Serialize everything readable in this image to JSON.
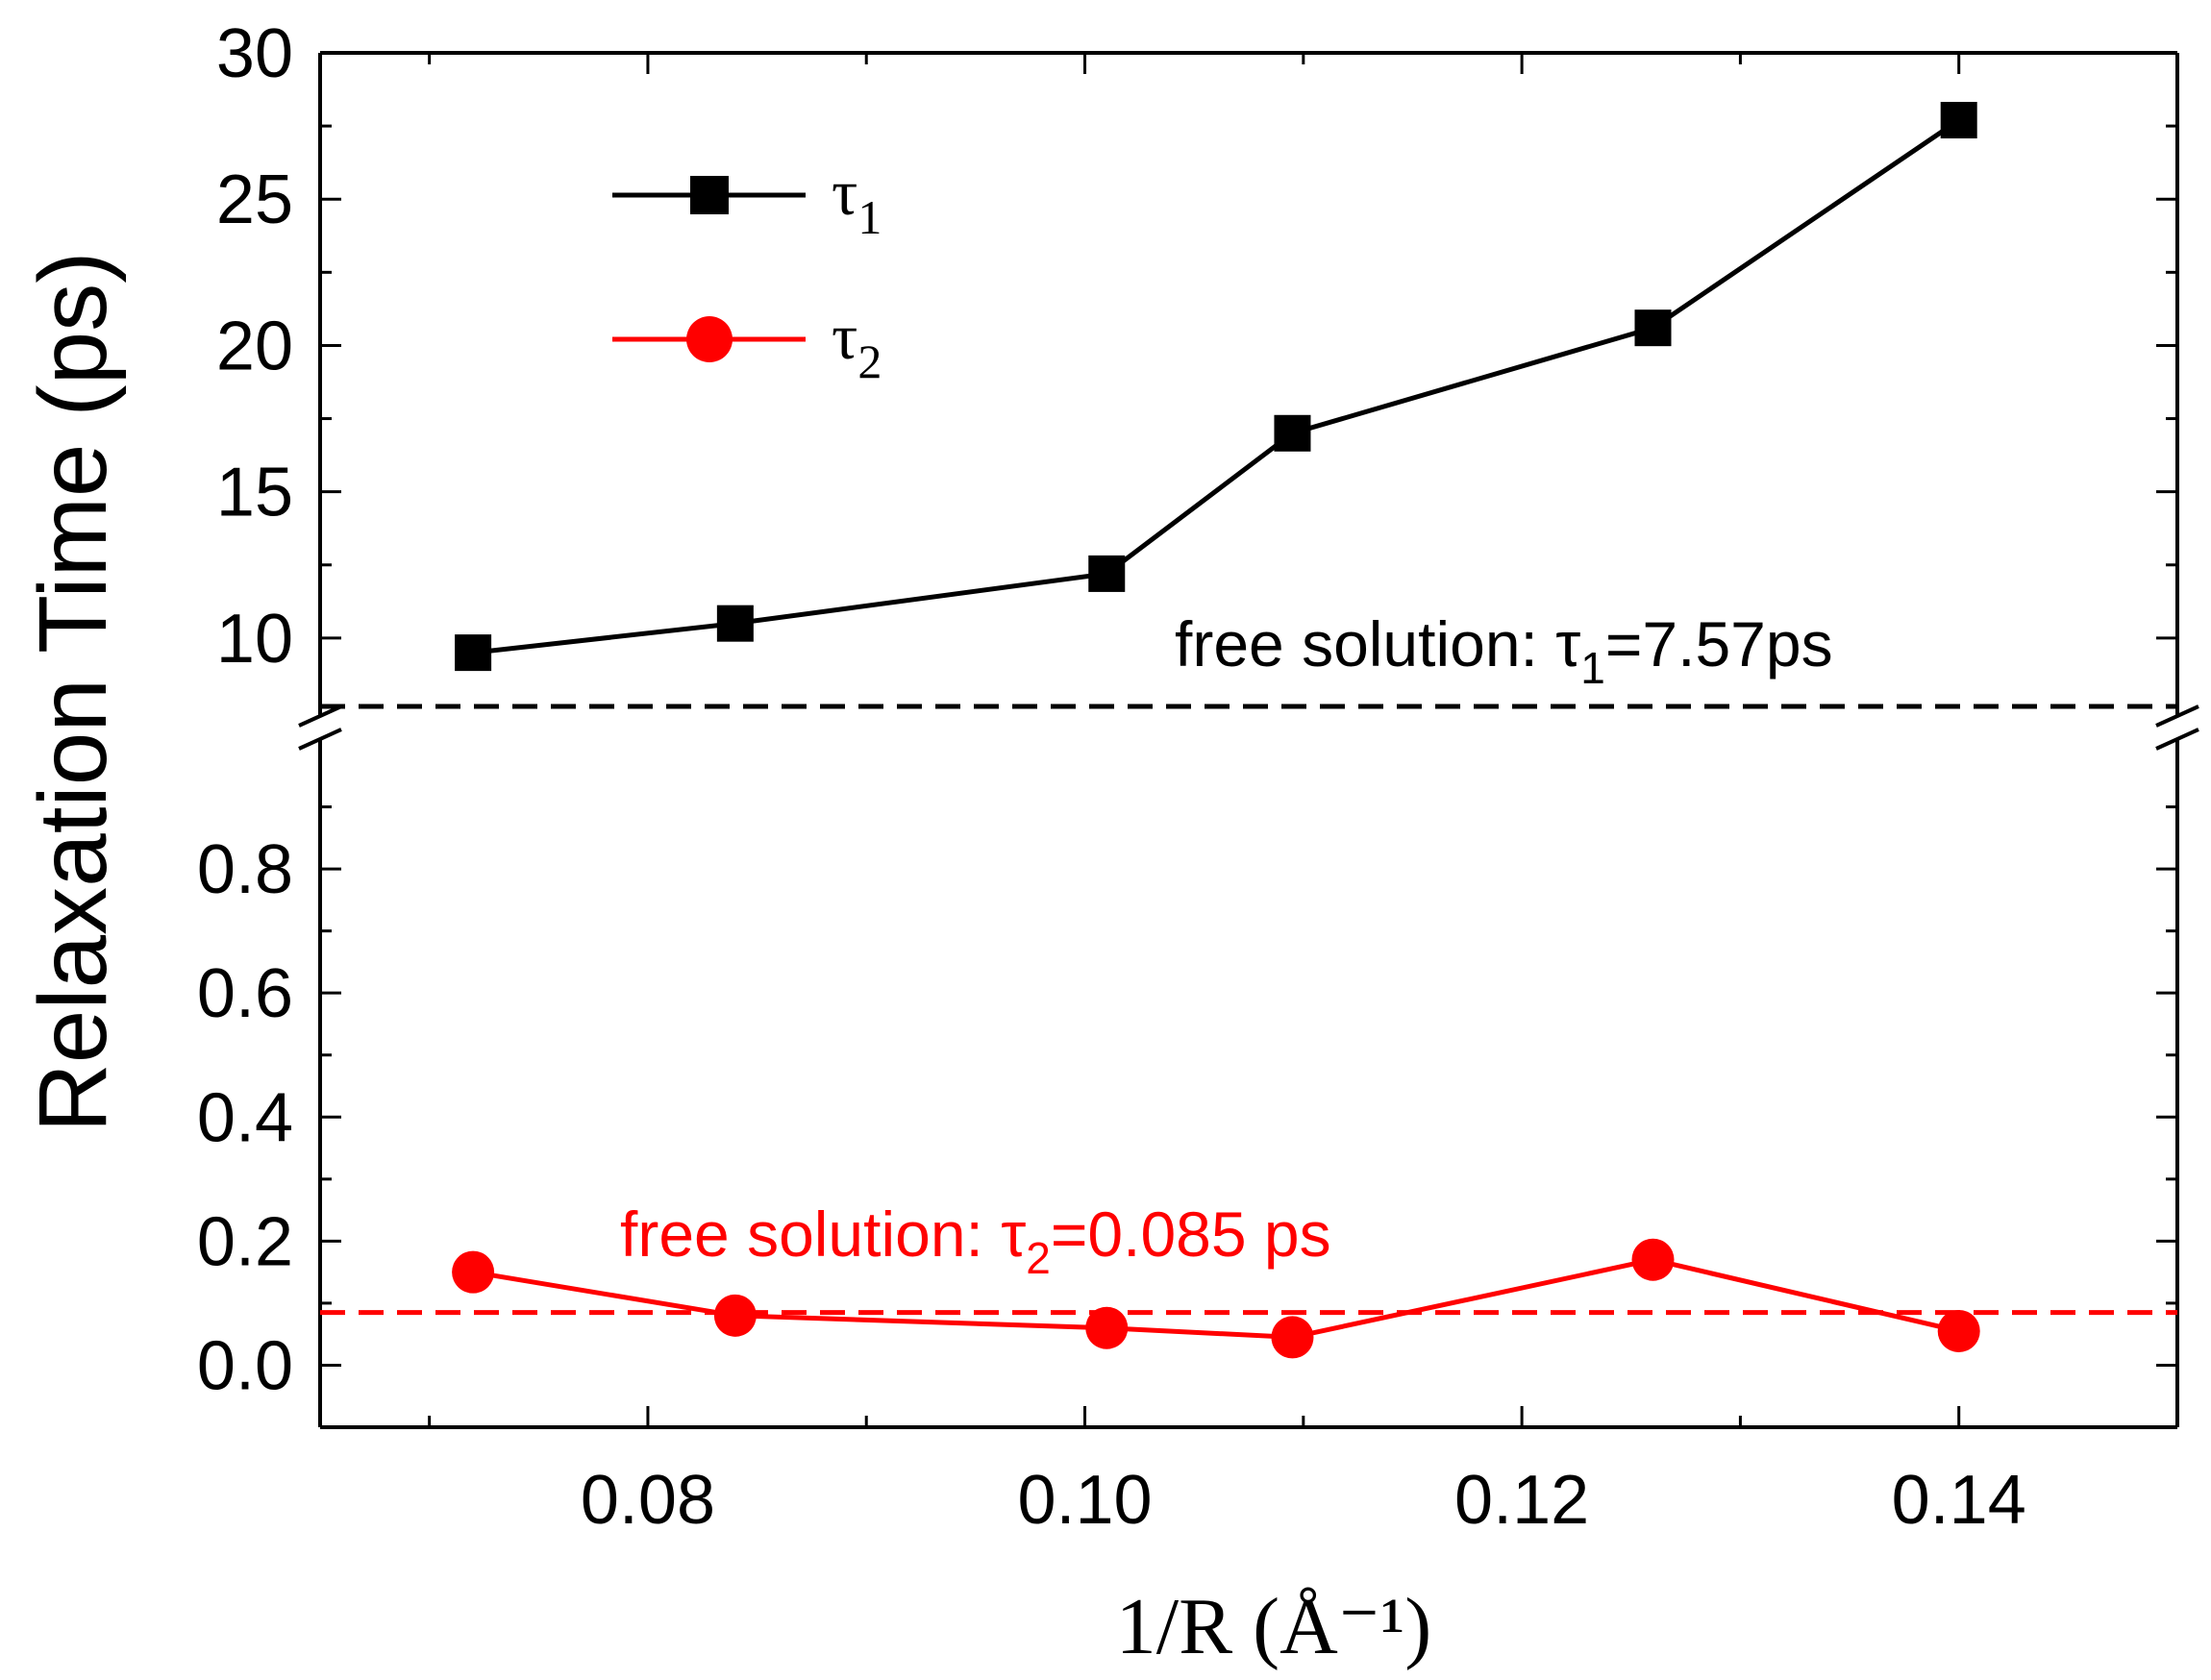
{
  "chart_data": {
    "type": "line",
    "xlabel": "1/R (Å⁻¹)",
    "ylabel": "Relaxation Time (ps)",
    "xlim": [
      0.065,
      0.15
    ],
    "x_ticks": [
      0.08,
      0.1,
      0.12,
      0.14
    ],
    "x_tick_labels": [
      "0.08",
      "0.10",
      "0.12",
      "0.14"
    ],
    "broken_y_axis": true,
    "upper_ylim": [
      7.5,
      30
    ],
    "upper_y_ticks": [
      10,
      15,
      20,
      25,
      30
    ],
    "upper_y_tick_labels": [
      "10",
      "15",
      "20",
      "25",
      "30"
    ],
    "lower_ylim": [
      -0.1,
      1.0
    ],
    "lower_y_ticks": [
      0.0,
      0.2,
      0.4,
      0.6,
      0.8
    ],
    "lower_y_tick_labels": [
      "0.0",
      "0.2",
      "0.4",
      "0.6",
      "0.8"
    ],
    "series": [
      {
        "name": "τ1",
        "legend_symbol": "τ",
        "legend_subscript": "1",
        "color": "#000000",
        "marker": "square",
        "panel": "upper",
        "x": [
          0.072,
          0.084,
          0.101,
          0.1095,
          0.126,
          0.14
        ],
        "values": [
          9.5,
          10.5,
          12.2,
          17.0,
          20.6,
          27.7
        ]
      },
      {
        "name": "τ2",
        "legend_symbol": "τ",
        "legend_subscript": "2",
        "color": "#ff0000",
        "marker": "circle",
        "panel": "lower",
        "x": [
          0.072,
          0.084,
          0.101,
          0.1095,
          0.126,
          0.14
        ],
        "values": [
          0.15,
          0.08,
          0.06,
          0.045,
          0.17,
          0.055
        ]
      }
    ],
    "reference_lines": [
      {
        "panel": "upper",
        "value": 7.57,
        "color": "#000000",
        "style": "dashed",
        "label_prefix": "free solution: τ",
        "label_subscript": "1",
        "label_suffix": "=7.57ps"
      },
      {
        "panel": "lower",
        "value": 0.085,
        "color": "#ff0000",
        "style": "dashed",
        "label_prefix": "free solution: τ",
        "label_subscript": "2",
        "label_suffix": "=0.085 ps"
      }
    ]
  }
}
